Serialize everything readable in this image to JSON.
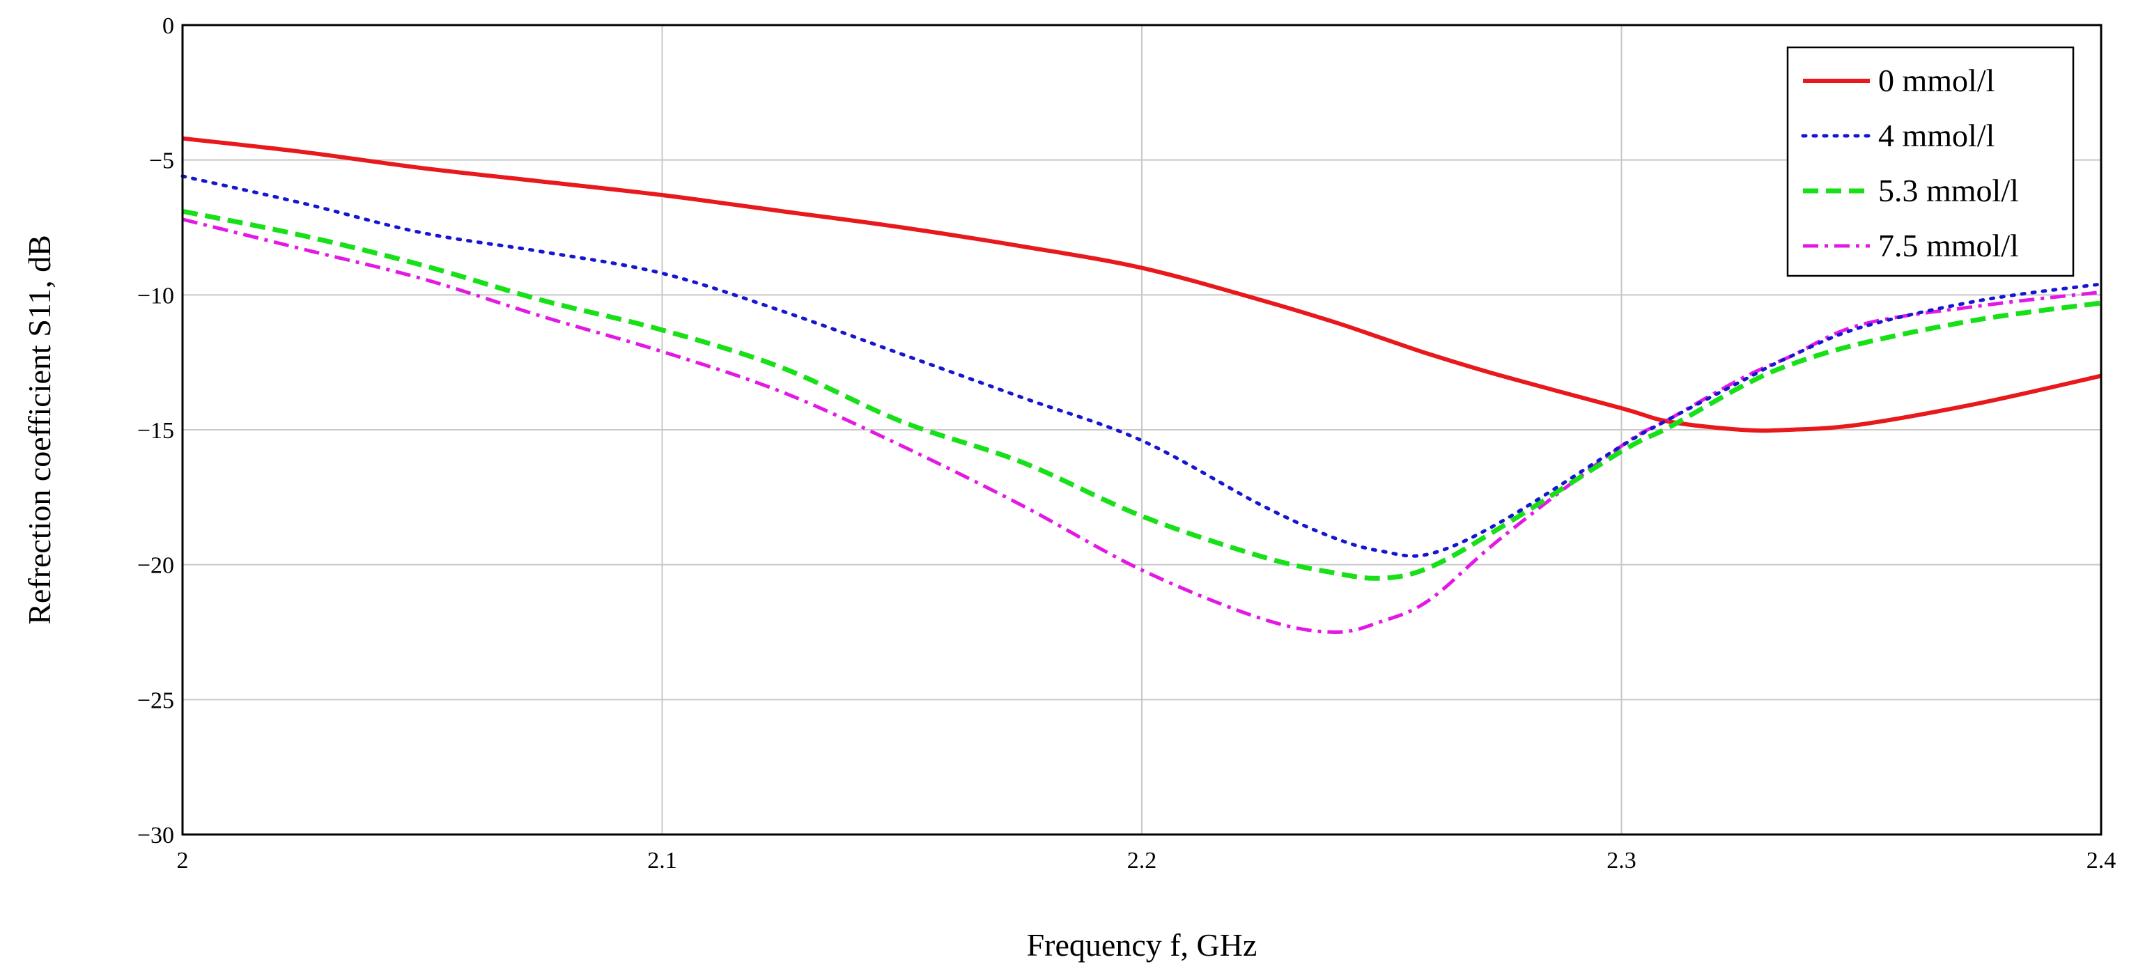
{
  "chart_data": {
    "type": "line",
    "title": "",
    "xlabel": "Frequency f, GHz",
    "ylabel": "Refrection coefficient S11, dB",
    "xlim": [
      2,
      2.4
    ],
    "ylim": [
      -30,
      0
    ],
    "grid": true,
    "legend_position": "top-right",
    "x_ticks": [
      2,
      2.1,
      2.2,
      2.3,
      2.4
    ],
    "x_tick_labels": [
      "2",
      "2.1",
      "2.2",
      "2.3",
      "2.4"
    ],
    "y_ticks": [
      0,
      -5,
      -10,
      -15,
      -20,
      -25,
      -30
    ],
    "y_tick_labels": [
      "0",
      "−5",
      "−10",
      "−15",
      "−20",
      "−25",
      "−30"
    ],
    "x": [
      2.0,
      2.025,
      2.05,
      2.075,
      2.1,
      2.125,
      2.15,
      2.175,
      2.2,
      2.225,
      2.24,
      2.25,
      2.26,
      2.275,
      2.3,
      2.31,
      2.325,
      2.335,
      2.35,
      2.375,
      2.4
    ],
    "series": [
      {
        "name": "0 mmol/l",
        "color": "#e8191c",
        "dash": "solid",
        "values": [
          -4.2,
          -4.7,
          -5.3,
          -5.8,
          -6.3,
          -6.9,
          -7.5,
          -8.2,
          -9.0,
          -10.2,
          -11.0,
          -11.6,
          -12.2,
          -13.0,
          -14.2,
          -14.7,
          -15.0,
          -15.0,
          -14.8,
          -14.0,
          -13.0
        ]
      },
      {
        "name": "4 mmol/l",
        "color": "#1616d0",
        "dash": "dotted",
        "values": [
          -5.6,
          -6.6,
          -7.7,
          -8.4,
          -9.2,
          -10.6,
          -12.2,
          -13.8,
          -15.4,
          -17.8,
          -19.0,
          -19.5,
          -19.6,
          -18.4,
          -15.6,
          -14.6,
          -13.2,
          -12.3,
          -11.2,
          -10.2,
          -9.6
        ]
      },
      {
        "name": "5.3 mmol/l",
        "color": "#18e018",
        "dash": "dashed",
        "values": [
          -6.9,
          -7.8,
          -8.9,
          -10.2,
          -11.3,
          -12.7,
          -14.7,
          -16.2,
          -18.2,
          -19.7,
          -20.3,
          -20.5,
          -20.1,
          -18.6,
          -15.8,
          -14.9,
          -13.4,
          -12.6,
          -11.8,
          -10.9,
          -10.3
        ]
      },
      {
        "name": "7.5 mmol/l",
        "color": "#e418e4",
        "dash": "dashdot",
        "values": [
          -7.2,
          -8.3,
          -9.4,
          -10.8,
          -12.1,
          -13.6,
          -15.6,
          -17.8,
          -20.2,
          -22.0,
          -22.5,
          -22.1,
          -21.3,
          -19.0,
          -15.6,
          -14.6,
          -13.1,
          -12.3,
          -11.1,
          -10.4,
          -9.9
        ]
      }
    ]
  }
}
